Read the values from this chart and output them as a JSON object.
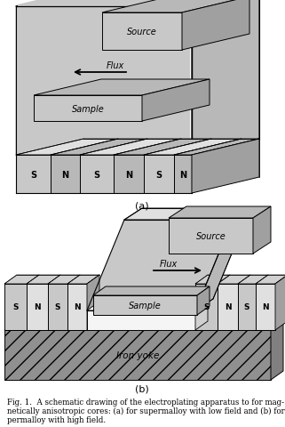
{
  "fig_width": 3.21,
  "fig_height": 4.81,
  "dpi": 100,
  "bg_color": "#ffffff",
  "label_a": "(a)",
  "label_b": "(b)",
  "caption_lines": [
    "Fig. 1.  A schematic drawing of the electroplating apparatus to for mag-",
    "netically anisotropic cores: (a) for supermalloy with low field and (b) for",
    "permalloy with high field."
  ],
  "caption_fontsize": 6.2,
  "label_fontsize": 8,
  "gray_fill": "#c8c8c8",
  "gray_dark": "#a0a0a0",
  "gray_light": "#e0e0e0",
  "gray_medium": "#b8b8b8",
  "white_fill": "#f5f5f5",
  "yoke_fill": "#909090"
}
